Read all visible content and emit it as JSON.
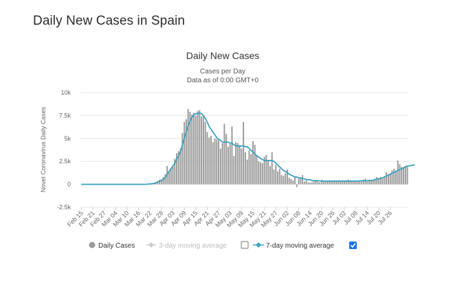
{
  "page": {
    "heading": "Daily New Cases in Spain"
  },
  "chart_data": {
    "type": "bar",
    "title": "Daily New Cases",
    "subtitle_lines": [
      "Cases per Day",
      "Data as of 0:00 GMT+0"
    ],
    "xlabel": "",
    "ylabel": "Novel Coronavirus Daily Cases",
    "ylim": [
      -2500,
      10000
    ],
    "ytick_values": [
      -2500,
      0,
      2500,
      5000,
      7500,
      10000
    ],
    "ytick_labels": [
      "-2.5k",
      "0",
      "2.5k",
      "5k",
      "7.5k",
      "10k"
    ],
    "grid": true,
    "legend_position": "bottom",
    "x_tick_labels": [
      "Feb 15",
      "Feb 21",
      "Feb 27",
      "Mar 04",
      "Mar 10",
      "Mar 16",
      "Mar 22",
      "Mar 28",
      "Apr 03",
      "Apr 09",
      "Apr 15",
      "Apr 21",
      "Apr 27",
      "May 03",
      "May 09",
      "May 15",
      "May 21",
      "May 27",
      "Jun 02",
      "Jun 08",
      "Jun 14",
      "Jun 20",
      "Jun 26",
      "Jul 02",
      "Jul 08",
      "Jul 14",
      "Jul 20",
      "Jul 26"
    ],
    "tick_every": 6,
    "series": [
      {
        "name": "Daily Cases",
        "color": "#999999",
        "values": [
          0,
          0,
          0,
          0,
          0,
          0,
          0,
          0,
          0,
          0,
          0,
          0,
          0,
          0,
          0,
          0,
          0,
          0,
          0,
          0,
          0,
          0,
          0,
          0,
          0,
          0,
          0,
          0,
          0,
          0,
          0,
          0,
          0,
          0,
          10,
          20,
          40,
          60,
          100,
          200,
          350,
          500,
          550,
          800,
          1100,
          2000,
          1400,
          1800,
          1900,
          2800,
          3400,
          3600,
          3900,
          5600,
          6800,
          7100,
          8200,
          7900,
          7600,
          7800,
          7500,
          8000,
          8100,
          7400,
          7500,
          6800,
          5700,
          5100,
          5300,
          4600,
          5000,
          4900,
          4800,
          3900,
          4500,
          6600,
          5500,
          4100,
          4400,
          6300,
          3100,
          4600,
          4500,
          4300,
          3900,
          6800,
          3500,
          2700,
          3700,
          3300,
          4700,
          4300,
          3200,
          2500,
          2400,
          2300,
          3000,
          3200,
          2600,
          2000,
          3500,
          1600,
          2100,
          1400,
          1700,
          1000,
          900,
          1200,
          1600,
          700,
          600,
          400,
          800,
          -300,
          600,
          700,
          1000,
          300,
          400,
          200,
          200,
          200,
          300,
          400,
          300,
          200,
          500,
          300,
          300,
          300,
          300,
          400,
          300,
          300,
          300,
          400,
          400,
          300,
          400,
          300,
          500,
          300,
          400,
          300,
          400,
          300,
          400,
          300,
          500,
          600,
          300,
          400,
          500,
          400,
          600,
          800,
          600,
          800,
          600,
          900,
          1300,
          1100,
          1200,
          1500,
          1700,
          1500,
          2600,
          2200,
          1900,
          1800,
          2000,
          1900
        ]
      },
      {
        "name": "3-day moving average",
        "color": "#cccccc",
        "enabled": false
      },
      {
        "name": "7-day moving average",
        "color": "#3aa0c0",
        "enabled": true,
        "values": [
          0,
          0,
          0,
          0,
          0,
          0,
          0,
          0,
          0,
          0,
          0,
          0,
          0,
          0,
          0,
          0,
          0,
          0,
          0,
          0,
          0,
          0,
          0,
          0,
          0,
          0,
          0,
          0,
          0,
          0,
          0,
          0,
          0,
          0,
          10,
          20,
          40,
          60,
          100,
          150,
          250,
          350,
          400,
          550,
          750,
          1100,
          1400,
          1700,
          2000,
          2300,
          2700,
          3100,
          3600,
          4300,
          5000,
          5700,
          6400,
          6900,
          7300,
          7600,
          7700,
          7700,
          7800,
          7700,
          7500,
          7200,
          6800,
          6300,
          6000,
          5700,
          5400,
          5100,
          4900,
          4800,
          4600,
          4600,
          4600,
          4600,
          4500,
          4500,
          4300,
          4200,
          4200,
          4100,
          4200,
          4200,
          4100,
          4100,
          3900,
          3700,
          3500,
          3300,
          3100,
          3000,
          2800,
          2700,
          2600,
          2600,
          2600,
          2600,
          2600,
          2500,
          2300,
          2100,
          1900,
          1700,
          1500,
          1400,
          1300,
          1100,
          1000,
          900,
          800,
          800,
          700,
          700,
          600,
          600,
          500,
          500,
          500,
          400,
          400,
          400,
          400,
          350,
          350,
          350,
          350,
          350,
          350,
          350,
          350,
          350,
          350,
          350,
          350,
          350,
          350,
          350,
          350,
          350,
          350,
          350,
          350,
          350,
          380,
          380,
          400,
          400,
          400,
          420,
          420,
          450,
          500,
          550,
          600,
          650,
          700,
          800,
          900,
          1000,
          1100,
          1200,
          1300,
          1400,
          1500,
          1600,
          1700,
          1800,
          1900,
          2000,
          2000,
          2050,
          2100,
          2100
        ]
      }
    ]
  },
  "legend": {
    "items": [
      {
        "label": "Daily Cases",
        "checkbox": false
      },
      {
        "label": "3-day moving average",
        "checkbox": true,
        "checked": false
      },
      {
        "label": "7-day moving average",
        "checkbox": true,
        "checked": true
      }
    ]
  }
}
